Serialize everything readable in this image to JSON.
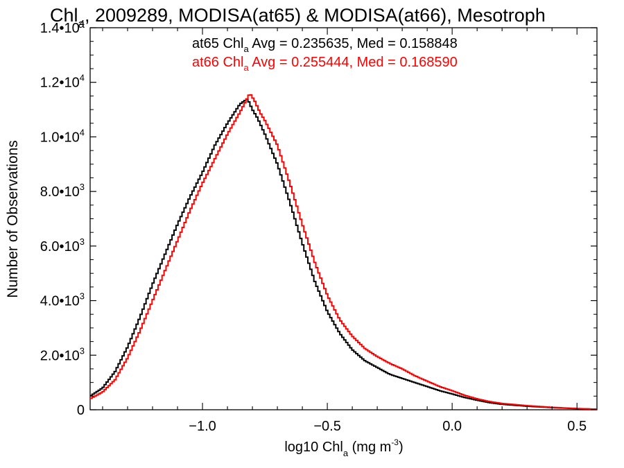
{
  "chart_data": {
    "type": "line",
    "title_main": "Chl",
    "title_sub": "a",
    "title_rest": ", 2009289, MODISA(at65) & MODISA(at66), Mesotroph",
    "xlabel_main": "log10 Chl",
    "xlabel_sub": "a",
    "xlabel_rest": " (mg m",
    "xlabel_sup": "-3",
    "xlabel_end": ")",
    "ylabel": "Number of Observations",
    "xlim": [
      -1.45,
      0.58
    ],
    "ylim": [
      0,
      14000
    ],
    "x_ticks": [
      {
        "value": -1.0,
        "label": "−1.0"
      },
      {
        "value": -0.5,
        "label": "−0.5"
      },
      {
        "value": 0.0,
        "label": "0.0"
      },
      {
        "value": 0.5,
        "label": "0.5"
      }
    ],
    "y_ticks": [
      {
        "value": 0,
        "base": "0",
        "exp": ""
      },
      {
        "value": 2000,
        "base": "2.0•10",
        "exp": "3"
      },
      {
        "value": 4000,
        "base": "4.0•10",
        "exp": "3"
      },
      {
        "value": 6000,
        "base": "6.0•10",
        "exp": "3"
      },
      {
        "value": 8000,
        "base": "8.0•10",
        "exp": "3"
      },
      {
        "value": 10000,
        "base": "1.0•10",
        "exp": "4"
      },
      {
        "value": 12000,
        "base": "1.2•10",
        "exp": "4"
      },
      {
        "value": 14000,
        "base": "1.4•10",
        "exp": "4"
      }
    ],
    "annotations": [
      {
        "pre": "at65 Chl",
        "sub": "a",
        "post": " Avg = 0.235635, Med = 0.158848",
        "color": "#000000"
      },
      {
        "pre": "at66 Chl",
        "sub": "a",
        "post": " Avg = 0.255444, Med = 0.168590",
        "color": "#ff0000"
      }
    ],
    "series": [
      {
        "color": "#000000",
        "x": [
          -1.45,
          -1.4,
          -1.35,
          -1.3,
          -1.25,
          -1.2,
          -1.15,
          -1.1,
          -1.05,
          -1.0,
          -0.95,
          -0.9,
          -0.85,
          -0.82,
          -0.8,
          -0.78,
          -0.75,
          -0.7,
          -0.65,
          -0.6,
          -0.55,
          -0.5,
          -0.45,
          -0.4,
          -0.35,
          -0.3,
          -0.25,
          -0.2,
          -0.15,
          -0.1,
          -0.05,
          0.0,
          0.05,
          0.1,
          0.15,
          0.2,
          0.3,
          0.4,
          0.5,
          0.58
        ],
        "y": [
          500,
          800,
          1400,
          2300,
          3400,
          4600,
          5700,
          6800,
          7800,
          8700,
          9700,
          10500,
          11200,
          11400,
          11000,
          10700,
          10100,
          9000,
          7600,
          6100,
          4700,
          3600,
          2800,
          2200,
          1800,
          1550,
          1300,
          1150,
          1000,
          850,
          700,
          580,
          450,
          350,
          260,
          200,
          130,
          80,
          40,
          20
        ]
      },
      {
        "color": "#ff0000",
        "x": [
          -1.45,
          -1.4,
          -1.35,
          -1.3,
          -1.25,
          -1.2,
          -1.15,
          -1.1,
          -1.05,
          -1.0,
          -0.95,
          -0.9,
          -0.85,
          -0.81,
          -0.79,
          -0.77,
          -0.75,
          -0.7,
          -0.65,
          -0.6,
          -0.55,
          -0.5,
          -0.45,
          -0.4,
          -0.35,
          -0.3,
          -0.25,
          -0.2,
          -0.15,
          -0.1,
          -0.05,
          0.0,
          0.05,
          0.1,
          0.15,
          0.2,
          0.3,
          0.4,
          0.5,
          0.58
        ],
        "y": [
          400,
          650,
          1100,
          1900,
          2900,
          4000,
          5100,
          6200,
          7300,
          8300,
          9200,
          10100,
          10900,
          11600,
          11300,
          10900,
          10600,
          9700,
          8300,
          6800,
          5400,
          4200,
          3300,
          2700,
          2250,
          1950,
          1700,
          1500,
          1250,
          1050,
          850,
          700,
          530,
          400,
          300,
          230,
          150,
          90,
          45,
          20
        ]
      }
    ]
  }
}
